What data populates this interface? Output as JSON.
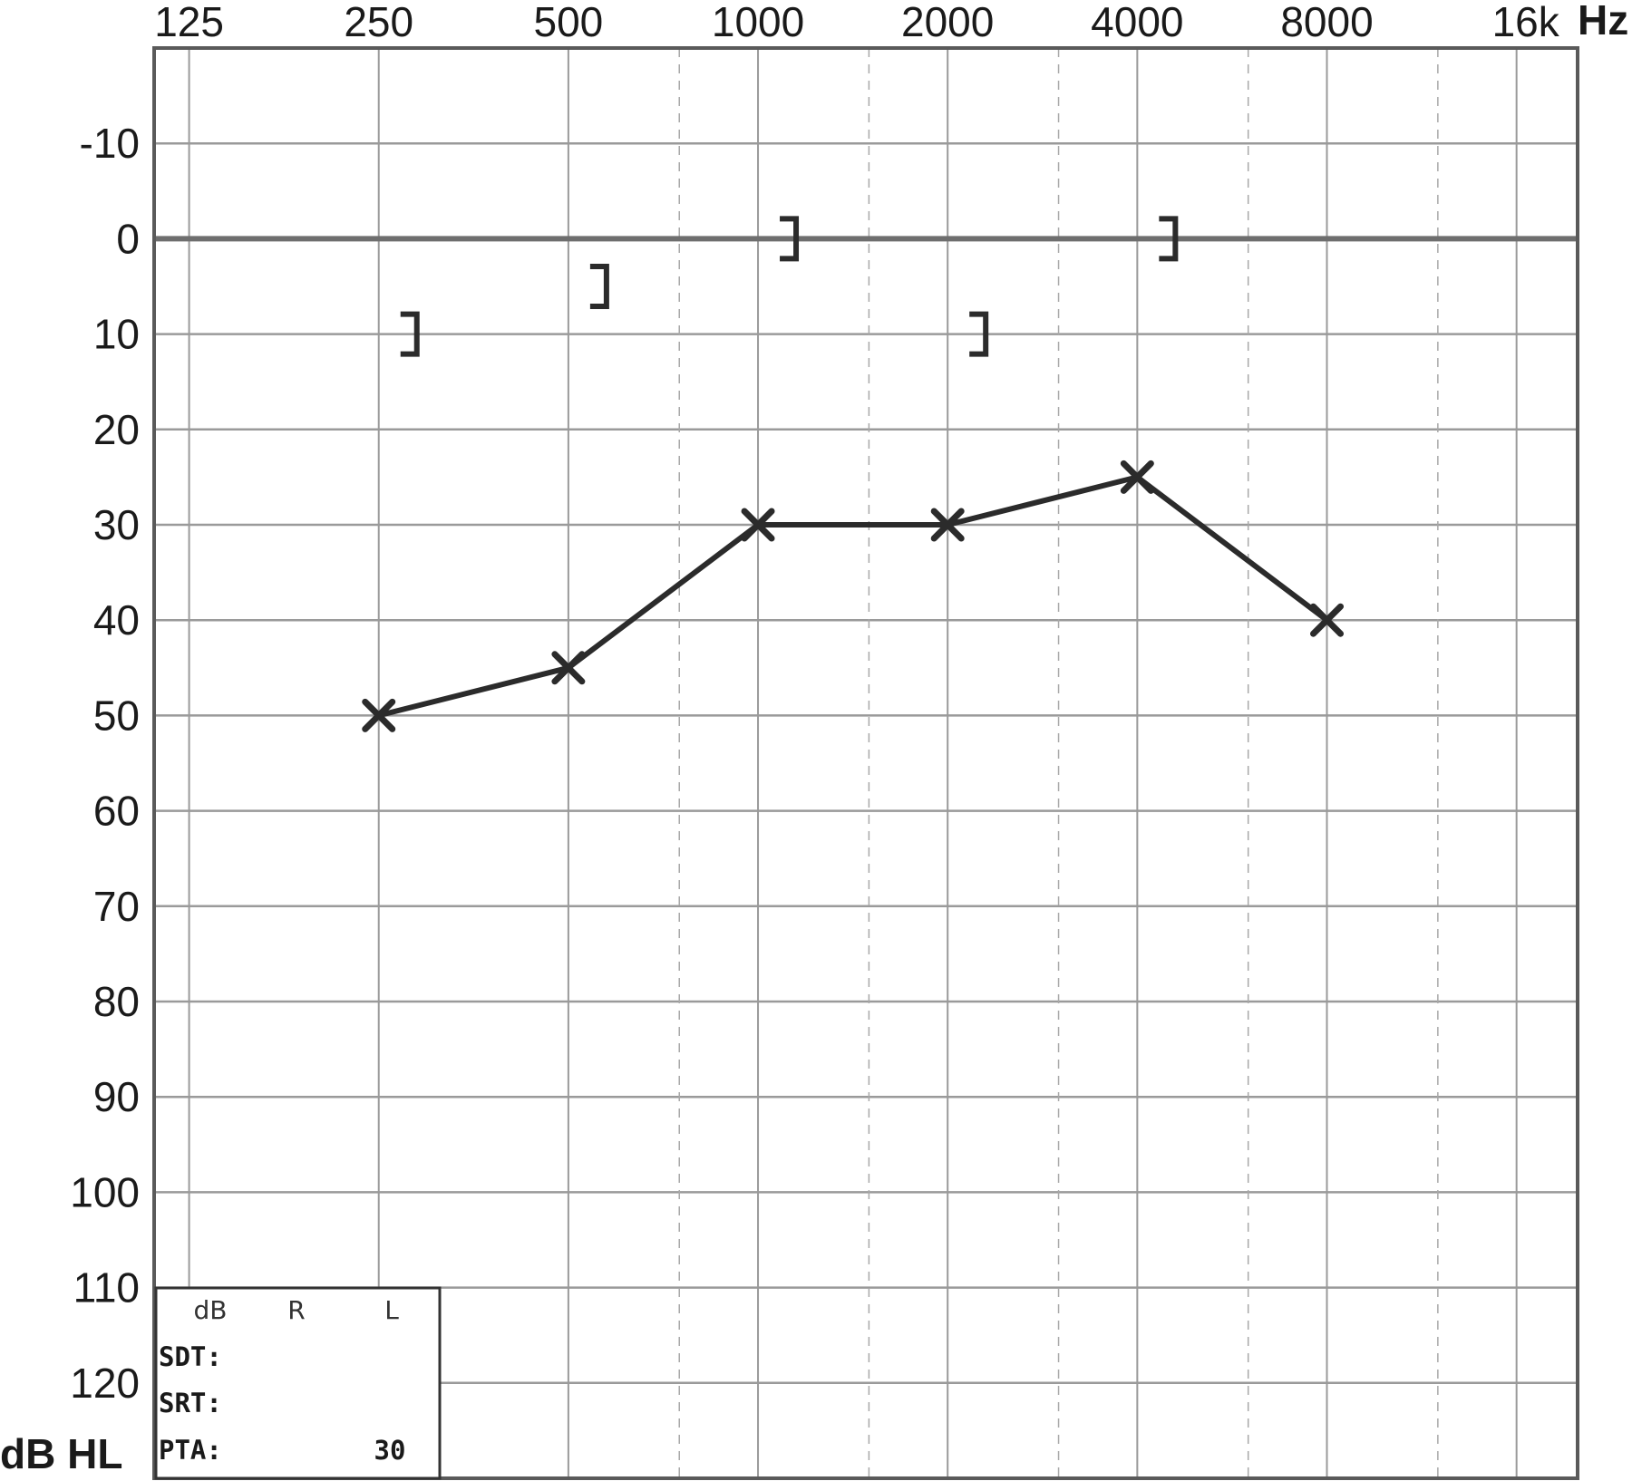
{
  "chart_data": {
    "type": "line",
    "x_axis": {
      "scale": "log2",
      "ticks": [
        125,
        250,
        500,
        1000,
        2000,
        4000,
        8000,
        16000
      ],
      "tick_labels": [
        "125",
        "250",
        "500",
        "1000",
        "2000",
        "4000",
        "8000",
        "16k"
      ],
      "unit": "Hz",
      "intermediate_ticks": [
        750,
        1500,
        3000,
        6000,
        12000
      ],
      "range": [
        110,
        20000
      ]
    },
    "y_axis": {
      "ticks": [
        -10,
        0,
        10,
        20,
        30,
        40,
        50,
        60,
        70,
        80,
        90,
        100,
        110,
        120
      ],
      "tick_labels": [
        "-10",
        "0",
        "10",
        "20",
        "30",
        "40",
        "50",
        "60",
        "70",
        "80",
        "90",
        "100",
        "110",
        "120"
      ],
      "unit": "dB HL",
      "range": [
        -20,
        130
      ],
      "inverted": true
    },
    "reference_line_db": 0,
    "grid": true,
    "series": [
      {
        "marker": "X",
        "connected": true,
        "x": [
          250,
          500,
          1000,
          2000,
          4000,
          8000
        ],
        "y": [
          50,
          45,
          30,
          30,
          25,
          40
        ]
      },
      {
        "marker": "]",
        "connected": false,
        "x": [
          250,
          500,
          1000,
          2000,
          4000
        ],
        "y": [
          10,
          5,
          0,
          10,
          0
        ]
      }
    ],
    "speech_table": {
      "headers": [
        "dB",
        "R",
        "L"
      ],
      "rows": [
        {
          "label": "SDT:",
          "R": "",
          "L": ""
        },
        {
          "label": "SRT:",
          "R": "",
          "L": ""
        },
        {
          "label": "PTA:",
          "R": "",
          "L": "30"
        }
      ]
    },
    "colors": {
      "line": "#2b2b2b",
      "grid": "#9a9a9a",
      "frame": "#5a5a5a",
      "reference": "#6e6e6e"
    }
  }
}
